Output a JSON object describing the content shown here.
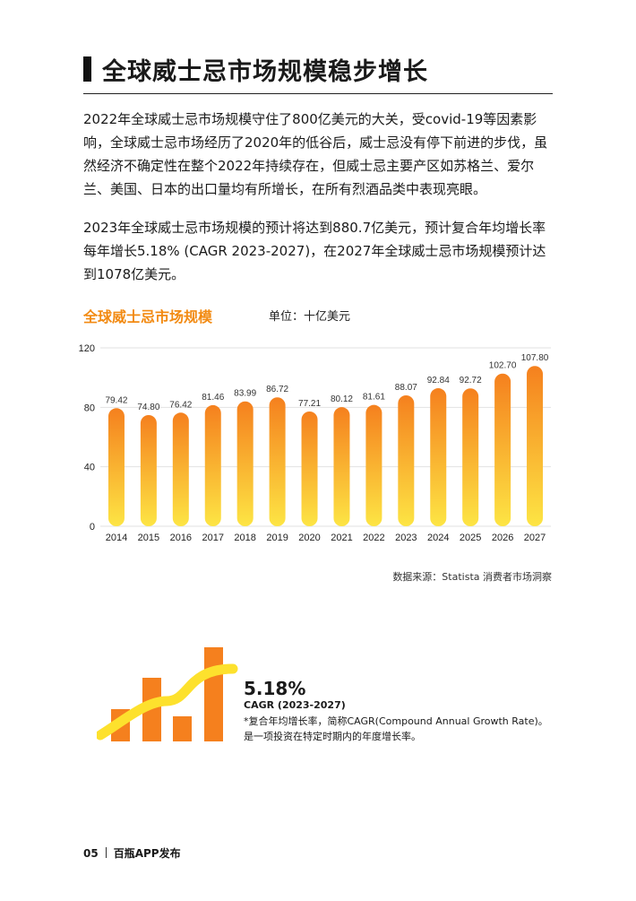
{
  "page": {
    "title": "全球威士忌市场规模稳步增长",
    "paragraphs": [
      "2022年全球威士忌市场规模守住了800亿美元的大关，受covid-19等因素影响，全球威士忌市场经历了2020年的低谷后，威士忌没有停下前进的步伐，虽然经济不确定性在整个2022年持续存在，但威士忌主要产区如苏格兰、爱尔兰、美国、日本的出口量均有所增长，在所有烈酒品类中表现亮眼。",
      "2023年全球威士忌市场规模的预计将达到880.7亿美元，预计复合年均增长率每年增长5.18% (CAGR 2023-2027)，在2027年全球威士忌市场规模预计达到1078亿美元。"
    ],
    "source": "数据来源：Statista 消费者市场洞察",
    "cagr": {
      "value": "5.18%",
      "label": "CAGR (2023-2027)",
      "note_1": "*复合年均增长率，简称CAGR(Compound Annual Growth Rate)。",
      "note_2": "是一项投资在特定时期内的年度增长率。"
    },
    "footer": {
      "page_number": "05",
      "publisher": "百瓶APP发布"
    }
  },
  "chart_data": {
    "type": "bar",
    "title": "全球威士忌市场规模",
    "unit": "单位：十亿美元",
    "categories": [
      "2014",
      "2015",
      "2016",
      "2017",
      "2018",
      "2019",
      "2020",
      "2021",
      "2022",
      "2023",
      "2024",
      "2025",
      "2026",
      "2027"
    ],
    "values": [
      79.42,
      74.8,
      76.42,
      81.46,
      83.99,
      86.72,
      77.21,
      80.12,
      81.61,
      88.07,
      92.84,
      92.72,
      102.7,
      107.8
    ],
    "value_labels": [
      "79.42",
      "74.80",
      "76.42",
      "81.46",
      "83.99",
      "86.72",
      "77.21",
      "80.12",
      "81.61",
      "88.07",
      "92.84",
      "92.72",
      "102.70",
      "107.80"
    ],
    "ylim": [
      0,
      120
    ],
    "yticks": [
      "0",
      "40",
      "80",
      "120"
    ],
    "grid": true,
    "colors": {
      "bar_top": "#f5801e",
      "bar_bottom": "#fde544",
      "accent": "#f28a12"
    }
  },
  "decoration": {
    "colors": {
      "bars": "#f5801e",
      "wave": "#fde12d"
    }
  }
}
